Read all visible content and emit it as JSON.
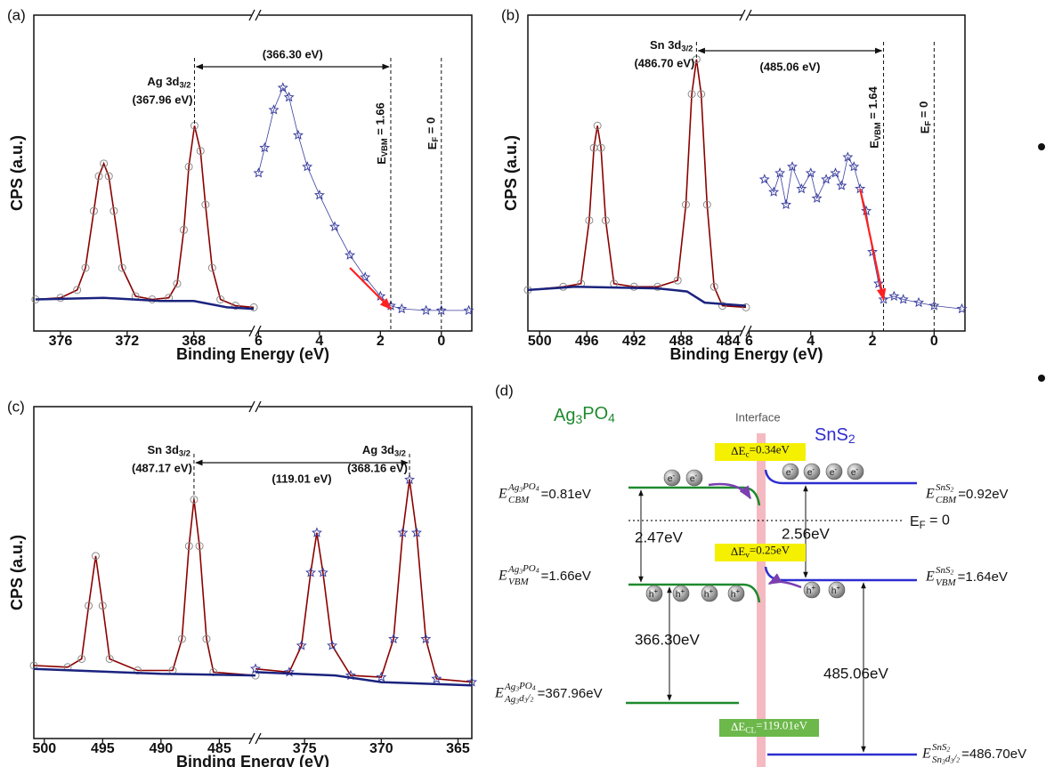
{
  "chart_data": [
    {
      "type": "broken-axis-line",
      "label": "(a)",
      "xlabel": "Binding Energy (eV)",
      "ylabel": "CPS (a.u.)",
      "ylim": [
        0,
        100
      ],
      "segments": [
        {
          "xlim": [
            377.6,
            364.3
          ],
          "xticks": [
            376,
            372,
            368
          ],
          "series": [
            {
              "color": "#8b0000",
              "marker": "circle",
              "marker_color": "#8a8a8a",
              "x": [
                377.5,
                376,
                375,
                374.5,
                374,
                373.7,
                373.4,
                373.1,
                372.8,
                372.3,
                371.5,
                370.5,
                369.5,
                369,
                368.6,
                368.3,
                367.96,
                367.6,
                367.3,
                366.9,
                366.4,
                365.5,
                364.4
              ],
              "values": [
                10,
                10.5,
                13,
                20,
                38,
                49,
                53,
                49,
                38,
                20,
                11,
                10,
                10.5,
                15,
                32,
                52,
                65,
                57,
                40,
                20,
                10,
                8,
                7.5
              ]
            },
            {
              "color": "#1a237e",
              "x": [
                377.5,
                373.4,
                370,
                368,
                366,
                364.4
              ],
              "values": [
                10,
                10.5,
                9.5,
                9.5,
                7.5,
                7
              ]
            }
          ]
        },
        {
          "xlim": [
            6.1,
            -1.0
          ],
          "xticks": [
            6,
            4,
            2,
            0
          ],
          "series": [
            {
              "color": "#3a3f9e",
              "marker": "star",
              "x": [
                6,
                5.8,
                5.5,
                5.2,
                5,
                4.7,
                4.4,
                4,
                3.5,
                3,
                2.5,
                2,
                1.66,
                1.3,
                0.5,
                0,
                -0.9
              ],
              "values": [
                50,
                58,
                70,
                77,
                74,
                62,
                52,
                43,
                33,
                24,
                17,
                11,
                8,
                7,
                6.5,
                6.5,
                6.5
              ]
            }
          ]
        }
      ],
      "peaks": [
        {
          "x": 367.96,
          "y": 65,
          "name": "Ag 3d",
          "sub": "3/2",
          "energy": "(367.96 eV)"
        }
      ],
      "levels": [
        {
          "x": 1.66,
          "symbol": "E",
          "sub": "VBM",
          "rest": " = 1.66"
        },
        {
          "x": 0,
          "symbol": "E",
          "sub": "F",
          "rest": " = 0"
        }
      ],
      "span": {
        "from": 367.96,
        "to": 1.66,
        "label": "(366.30 eV)"
      },
      "trend": {
        "color": "#ff2020",
        "x": [
          3.0,
          1.66
        ],
        "values": [
          20,
          7
        ]
      }
    },
    {
      "type": "broken-axis-line",
      "label": "(b)",
      "xlabel": "Binding Energy (eV)",
      "ylabel": "CPS (a.u.)",
      "ylim": [
        0,
        100
      ],
      "segments": [
        {
          "xlim": [
            501,
            482.5
          ],
          "xticks": [
            500,
            496,
            492,
            488,
            484
          ],
          "series": [
            {
              "color": "#8b0000",
              "marker": "circle",
              "marker_color": "#8a8a8a",
              "x": [
                501,
                498,
                496.5,
                495.8,
                495.4,
                495.1,
                494.8,
                494.4,
                493.7,
                492,
                490,
                488.3,
                487.6,
                487.1,
                486.7,
                486.3,
                485.8,
                485.2,
                484.5,
                482.5
              ],
              "values": [
                13,
                14,
                15,
                35,
                58,
                65,
                58,
                35,
                15,
                14,
                14,
                16,
                40,
                75,
                86,
                75,
                40,
                14,
                8,
                7.5
              ]
            },
            {
              "color": "#1a237e",
              "x": [
                501,
                497,
                490,
                487.5,
                486,
                482.5
              ],
              "values": [
                13,
                14,
                13.5,
                12.5,
                9,
                8
              ]
            }
          ]
        },
        {
          "xlim": [
            6.1,
            -1.0
          ],
          "xticks": [
            6,
            4,
            2,
            0
          ],
          "series": [
            {
              "color": "#3a3f9e",
              "marker": "star",
              "x": [
                5.5,
                5.2,
                5,
                4.8,
                4.6,
                4.3,
                4,
                3.8,
                3.5,
                3.2,
                3,
                2.8,
                2.6,
                2.4,
                2.2,
                2,
                1.8,
                1.64,
                1.3,
                1,
                0.5,
                0,
                -0.9
              ],
              "values": [
                48,
                44,
                50,
                40,
                52,
                45,
                50,
                42,
                48,
                50,
                46,
                55,
                52,
                45,
                38,
                25,
                15,
                10,
                11,
                10,
                9,
                8,
                7
              ]
            }
          ]
        }
      ],
      "peaks": [
        {
          "x": 486.7,
          "y": 86,
          "name": "Sn 3d",
          "sub": "3/2",
          "energy": "(486.70 eV)"
        }
      ],
      "levels": [
        {
          "x": 1.64,
          "symbol": "E",
          "sub": "VBM",
          "rest": " = 1.64"
        },
        {
          "x": 0,
          "symbol": "E",
          "sub": "F",
          "rest": " = 0"
        }
      ],
      "span": {
        "from": 486.7,
        "to": 1.64,
        "label": "(485.06 eV)"
      },
      "trend": {
        "color": "#ff2020",
        "x": [
          2.4,
          1.64
        ],
        "values": [
          45,
          10
        ]
      }
    },
    {
      "type": "broken-axis-line",
      "label": "(c)",
      "xlabel": "Binding Energy (eV)",
      "ylabel": "CPS (a.u.)",
      "ylim": [
        0,
        100
      ],
      "segments": [
        {
          "xlim": [
            500.9,
            481.9
          ],
          "xticks": [
            500,
            495,
            490,
            485
          ],
          "series": [
            {
              "color": "#8b0000",
              "marker": "circle",
              "marker_color": "#8a8a8a",
              "x": [
                500.9,
                498,
                496.8,
                496.2,
                495.6,
                495,
                494.4,
                492,
                489,
                488.2,
                487.6,
                487.17,
                486.7,
                486.1,
                485.5,
                481.9
              ],
              "values": [
                22,
                21.5,
                24,
                40,
                55,
                40,
                24,
                20.5,
                20.5,
                30,
                58,
                72,
                58,
                30,
                20,
                19
              ]
            },
            {
              "color": "#1a237e",
              "x": [
                500.9,
                490,
                481.9
              ],
              "values": [
                21,
                19.5,
                19
              ]
            }
          ]
        },
        {
          "xlim": [
            378.2,
            364.1
          ],
          "xticks": [
            375,
            370,
            365
          ],
          "series": [
            {
              "color": "#8b0000",
              "marker": "star",
              "marker_color": "#3a3f9e",
              "x": [
                378.2,
                376,
                375.2,
                374.6,
                374.2,
                373.8,
                373.2,
                372,
                370,
                369.2,
                368.6,
                368.16,
                367.7,
                367.1,
                366.4,
                364.1
              ],
              "values": [
                21,
                20,
                28,
                50,
                62,
                50,
                28,
                19,
                18.5,
                30,
                62,
                78,
                62,
                30,
                18,
                17
              ]
            },
            {
              "color": "#1a237e",
              "x": [
                378.2,
                373,
                370,
                364.1
              ],
              "values": [
                20,
                19,
                17,
                16
              ]
            }
          ]
        }
      ],
      "peaks": [
        {
          "x": 487.17,
          "y": 72,
          "name": "Sn 3d",
          "sub": "3/2",
          "energy": "(487.17 eV)"
        },
        {
          "x": 368.16,
          "y": 78,
          "name": "Ag 3d",
          "sub": "3/2",
          "energy": "(368.16 eV)"
        }
      ],
      "levels": [],
      "span": {
        "from": 487.17,
        "to": 368.16,
        "label": "(119.01 eV)"
      }
    }
  ],
  "diagram": {
    "label": "(d)",
    "left_material": "Ag3PO4",
    "interface": "Interface",
    "right_material": "SnS2",
    "left_levels": [
      {
        "symbol": "E",
        "sup": "Ag3PO4",
        "sub": "CBM",
        "rest": "=0.81eV"
      },
      {
        "symbol": "E",
        "sup": "Ag3PO4",
        "sub": "VBM",
        "rest": "=1.66eV"
      },
      {
        "symbol": "E",
        "sup": "Ag3PO4",
        "sub": "Ag3d3/2",
        "rest": "=367.96eV"
      }
    ],
    "right_levels": [
      {
        "symbol": "E",
        "sup": "SnS2",
        "sub": "CBM",
        "rest": "=0.92eV"
      },
      {
        "symbol": "E",
        "sup": "SnS2",
        "sub": "VBM",
        "rest": "=1.64eV"
      },
      {
        "symbol": "E",
        "sup": "SnS2",
        "sub": "Sn3d3/2",
        "rest": "=486.70eV"
      }
    ],
    "fermi": {
      "symbol": "E",
      "sub": "F",
      "rest": " = 0"
    },
    "offsets": [
      {
        "symbol": "ΔE",
        "sub": "c",
        "rest": "=0.34eV"
      },
      {
        "symbol": "ΔE",
        "sub": "v",
        "rest": "=0.25eV"
      },
      {
        "symbol": "ΔE",
        "sub": "CL",
        "rest": "=119.01eV"
      }
    ],
    "gaps": [
      "2.47eV",
      "2.56eV",
      "366.30eV",
      "485.06eV"
    ],
    "electron": {
      "symbol": "e",
      "charge": "-"
    },
    "hole": {
      "symbol": "h",
      "charge": "+"
    }
  }
}
